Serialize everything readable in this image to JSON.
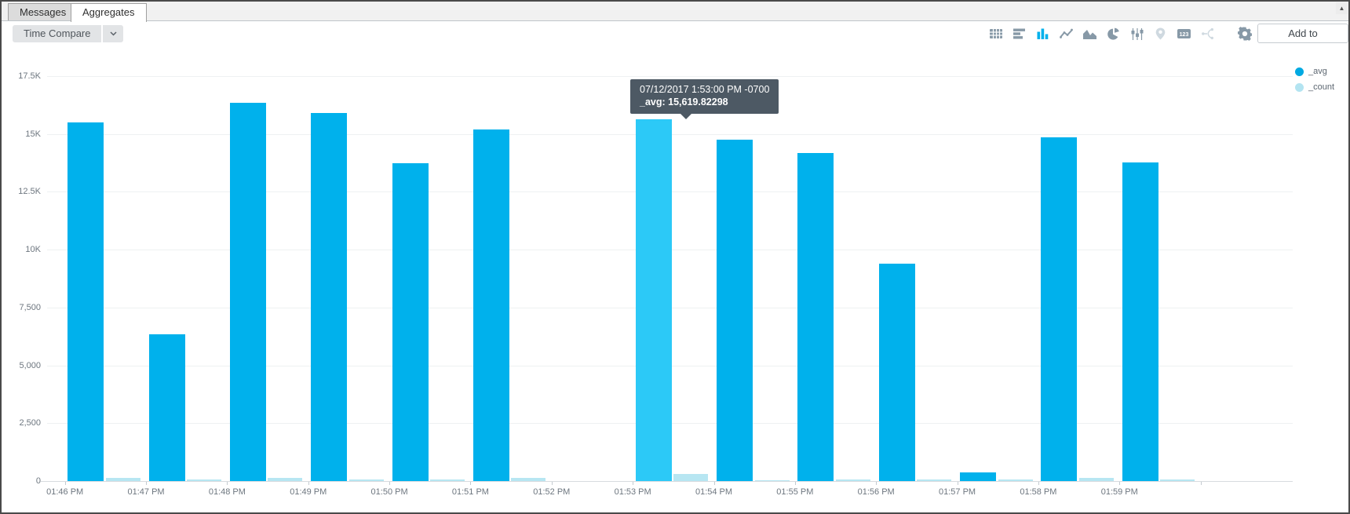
{
  "window": {
    "scroll_up_glyph": "▲"
  },
  "tabs": [
    {
      "label": "Messages",
      "active": false
    },
    {
      "label": "Aggregates",
      "active": true
    }
  ],
  "toolbar": {
    "time_compare_label": "Time Compare",
    "add_to_dashboard_label": "Add to Dashboard",
    "icons": [
      {
        "name": "table-icon",
        "state": "normal"
      },
      {
        "name": "bar-chart-horizontal-icon",
        "state": "normal"
      },
      {
        "name": "bar-chart-icon",
        "state": "active"
      },
      {
        "name": "line-chart-icon",
        "state": "normal"
      },
      {
        "name": "area-chart-icon",
        "state": "normal"
      },
      {
        "name": "pie-chart-icon",
        "state": "normal"
      },
      {
        "name": "box-plot-icon",
        "state": "normal"
      },
      {
        "name": "map-pin-icon",
        "state": "disabled"
      },
      {
        "name": "single-value-icon",
        "state": "normal",
        "text": "123"
      },
      {
        "name": "flow-icon",
        "state": "disabled"
      },
      {
        "name": "gear-icon",
        "state": "normal"
      }
    ],
    "colors": {
      "icon_normal": "#8799a7",
      "icon_active": "#00b1ec",
      "icon_disabled": "#cfd9e0"
    }
  },
  "legend": [
    {
      "label": "_avg",
      "color": "#00a9e2"
    },
    {
      "label": "_count",
      "color": "#b3e4f1"
    }
  ],
  "tooltip": {
    "line1": "07/12/2017 1:53:00 PM -0700",
    "line2": "_avg: 15,619.82298"
  },
  "chart_data": {
    "type": "bar",
    "title": "",
    "xlabel": "",
    "ylabel": "",
    "ylim": [
      0,
      17500
    ],
    "grid": "horizontal",
    "legend_position": "top-right",
    "y_tick_values": [
      0,
      2500,
      5000,
      7500,
      10000,
      12500,
      15000,
      17500
    ],
    "y_tick_labels": [
      "0",
      "2,500",
      "5,000",
      "7,500",
      "10K",
      "12.5K",
      "15K",
      "17.5K"
    ],
    "categories": [
      "01:46 PM",
      "01:47 PM",
      "01:48 PM",
      "01:49 PM",
      "01:50 PM",
      "01:51 PM",
      "01:52 PM",
      "01:53 PM",
      "01:54 PM",
      "01:55 PM",
      "01:56 PM",
      "01:57 PM",
      "01:58 PM",
      "01:59 PM"
    ],
    "series": [
      {
        "name": "_avg",
        "color": "#00b1ec",
        "values": [
          15490,
          6340,
          16360,
          15910,
          13740,
          15200,
          null,
          15619.82298,
          14740,
          14180,
          9400,
          370,
          14870,
          13760
        ]
      },
      {
        "name": "_count",
        "color": "#b7e6f2",
        "values": [
          120,
          75,
          150,
          75,
          60,
          120,
          null,
          290,
          50,
          70,
          70,
          70,
          140,
          70
        ]
      }
    ],
    "highlight": {
      "category": "01:53 PM",
      "series": "_avg",
      "color": "#2cc9f7",
      "tooltip_avg": 15619.82298,
      "tooltip_time": "07/12/2017 1:53:00 PM -0700"
    }
  }
}
